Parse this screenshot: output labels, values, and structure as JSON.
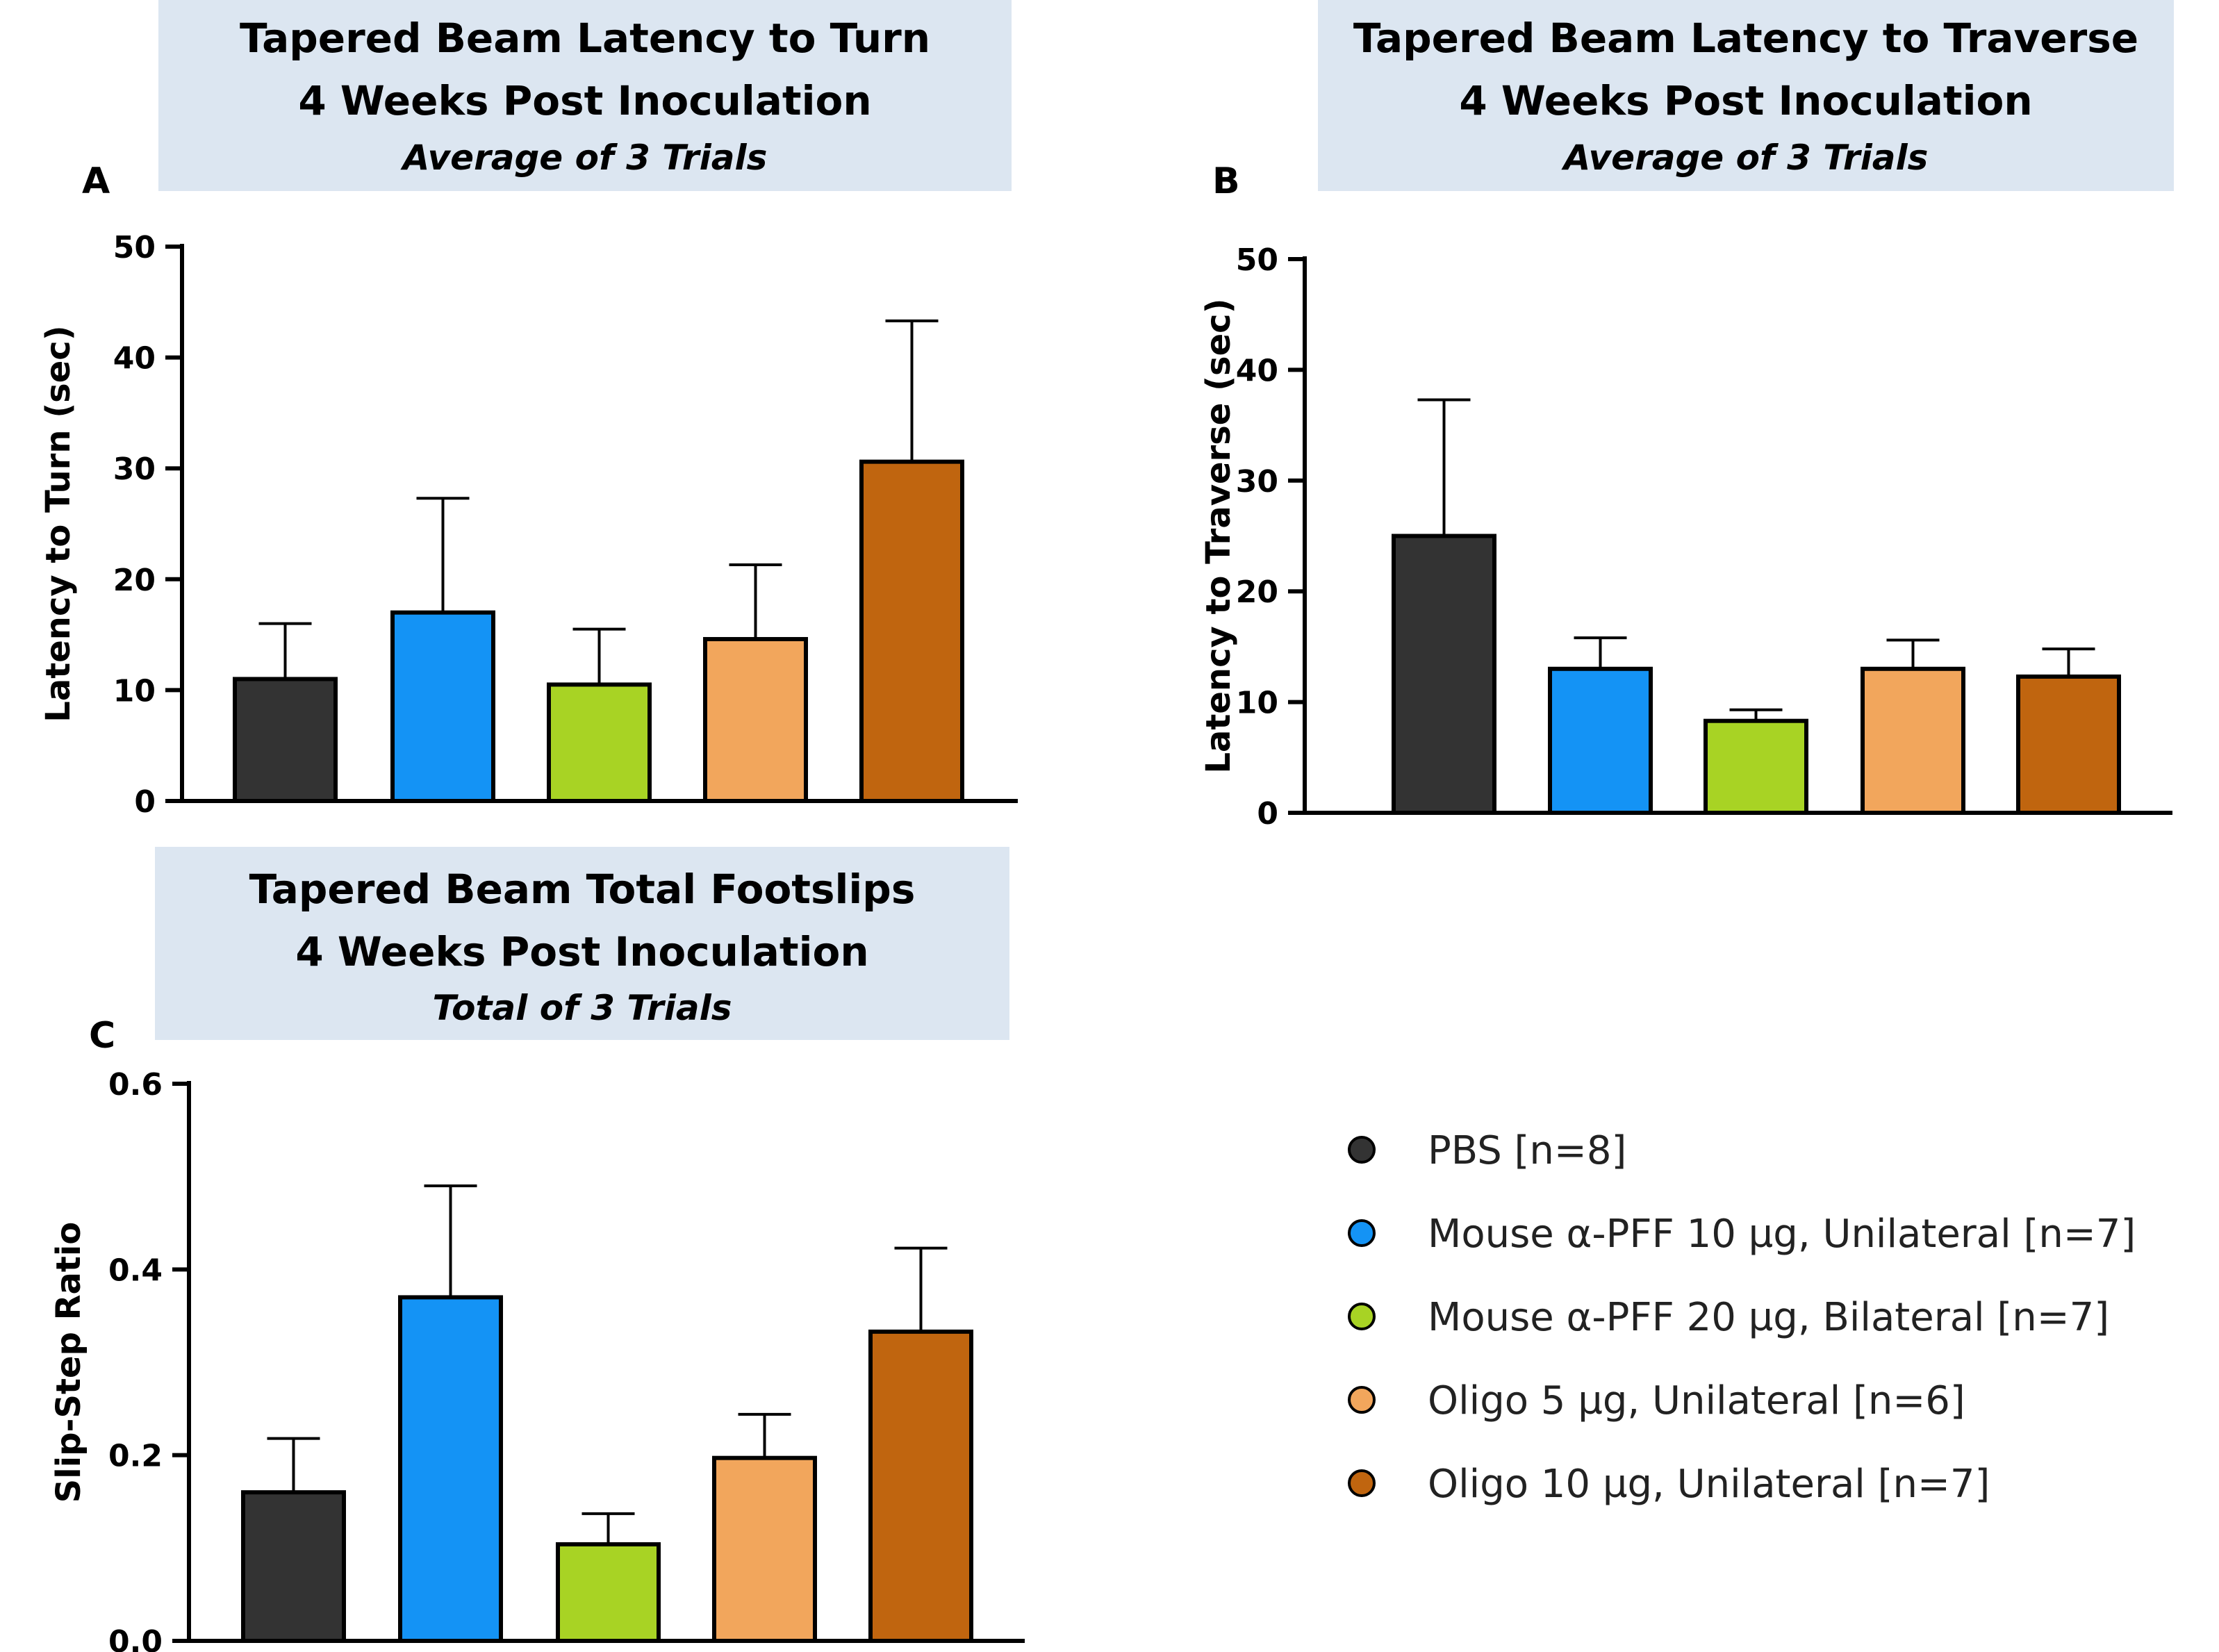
{
  "colors": {
    "pbs": "#333333",
    "pff10": "#1493f5",
    "pff20": "#a8d324",
    "oligo5": "#f2a65c",
    "oligo10": "#c0650f",
    "title_bg": "#dce6f1"
  },
  "legend": [
    {
      "label": "PBS [n=8]",
      "color": "#333333"
    },
    {
      "label": "Mouse α-PFF 10 µg, Unilateral [n=7]",
      "color": "#1493f5"
    },
    {
      "label": "Mouse α-PFF 20 µg, Bilateral [n=7]",
      "color": "#a8d324"
    },
    {
      "label": "Oligo 5 µg, Unilateral [n=6]",
      "color": "#f2a65c"
    },
    {
      "label": "Oligo 10 µg, Unilateral [n=7]",
      "color": "#c0650f"
    }
  ],
  "chart_data": [
    {
      "panel": "A",
      "type": "bar",
      "title": [
        "Tapered Beam Latency to Turn",
        "4 Weeks Post Inoculation"
      ],
      "subtitle": "Average of 3 Trials",
      "ylabel": "Latency to Turn (sec)",
      "ylim": [
        0,
        50
      ],
      "yticks": [
        "0",
        "10",
        "20",
        "30",
        "40",
        "50"
      ],
      "ytick_values": [
        0,
        10,
        20,
        30,
        40,
        50
      ],
      "values": [
        11,
        17,
        10.5,
        14.6,
        30.6
      ],
      "errors": [
        5,
        10.3,
        5,
        6.7,
        12.7
      ]
    },
    {
      "panel": "B",
      "type": "bar",
      "title": [
        "Tapered Beam Latency to Traverse",
        "4 Weeks Post Inoculation"
      ],
      "subtitle": "Average of 3 Trials",
      "ylabel": "Latency to Traverse (sec)",
      "ylim": [
        0,
        50
      ],
      "yticks": [
        "0",
        "10",
        "20",
        "30",
        "40",
        "50"
      ],
      "ytick_values": [
        0,
        10,
        20,
        30,
        40,
        50
      ],
      "values": [
        25,
        13,
        8.3,
        13,
        12.3
      ],
      "errors": [
        12.3,
        2.8,
        1,
        2.6,
        2.5
      ]
    },
    {
      "panel": "C",
      "type": "bar",
      "title": [
        "Tapered Beam Total Footslips",
        "4 Weeks Post Inoculation"
      ],
      "subtitle": "Total of 3 Trials",
      "ylabel": "Slip-Step Ratio",
      "ylim": [
        0,
        0.6
      ],
      "yticks": [
        "0.0",
        "0.2",
        "0.4",
        "0.6"
      ],
      "ytick_values": [
        0,
        0.2,
        0.4,
        0.6
      ],
      "values": [
        0.16,
        0.37,
        0.104,
        0.197,
        0.333
      ],
      "errors": [
        0.058,
        0.12,
        0.033,
        0.047,
        0.09
      ]
    }
  ]
}
